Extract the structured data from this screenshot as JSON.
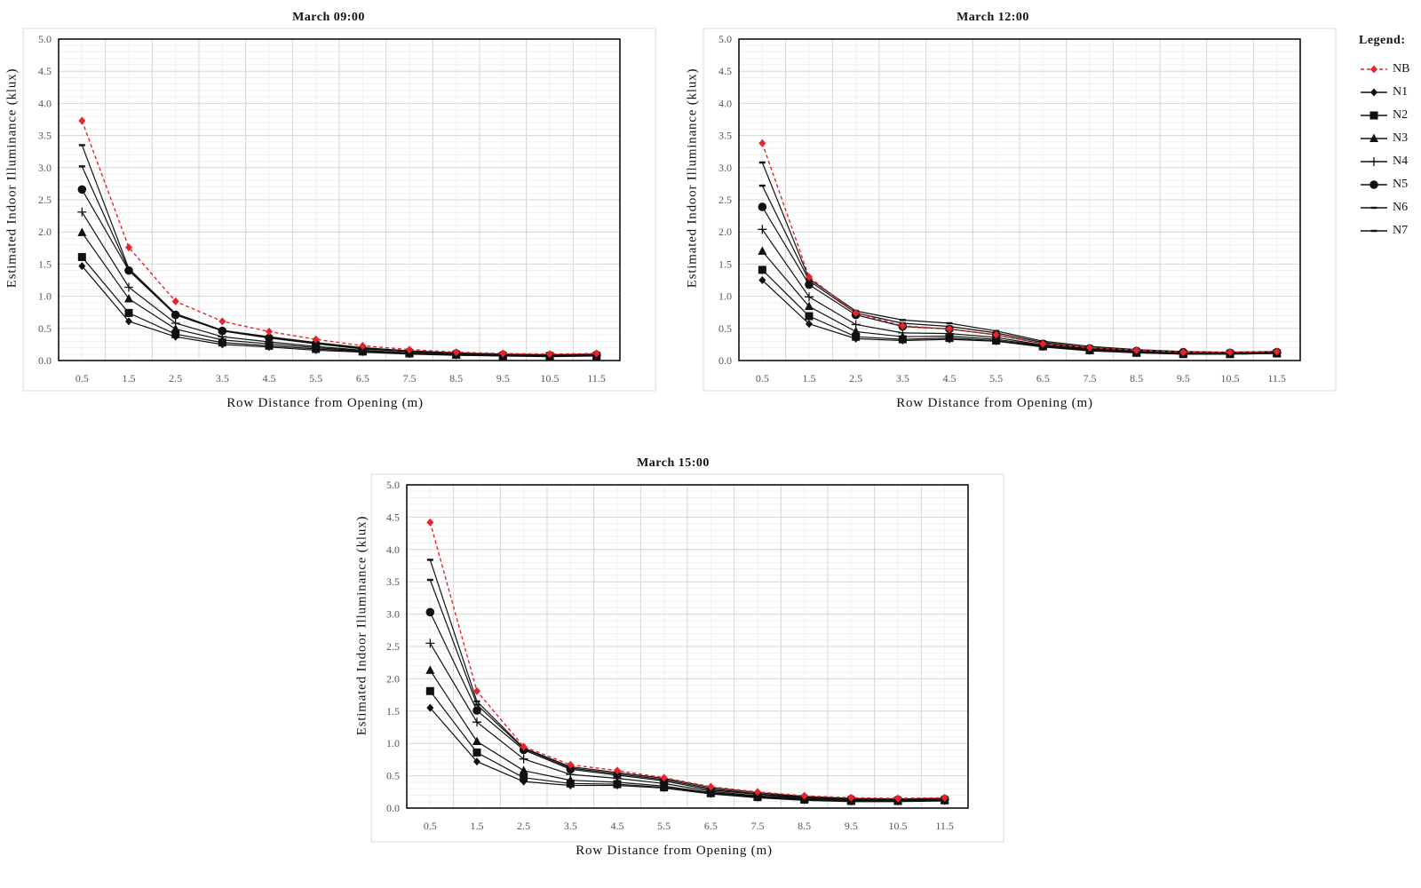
{
  "legend": {
    "title": "Legend:"
  },
  "styles": {
    "NB": {
      "color": "#e8242a",
      "marker": "diamond",
      "dashed": true
    },
    "N1": {
      "color": "#111111",
      "marker": "diamond",
      "dashed": false
    },
    "N2": {
      "color": "#111111",
      "marker": "square",
      "dashed": false
    },
    "N3": {
      "color": "#111111",
      "marker": "triangle",
      "dashed": false
    },
    "N4": {
      "color": "#111111",
      "marker": "plus",
      "dashed": false
    },
    "N5": {
      "color": "#111111",
      "marker": "circle",
      "dashed": false
    },
    "N6": {
      "color": "#111111",
      "marker": "dash",
      "dashed": false
    },
    "N7": {
      "color": "#111111",
      "marker": "dash",
      "dashed": false
    }
  },
  "chart_data": [
    {
      "type": "line",
      "title": "March 09:00",
      "xlabel": "Row Distance from Opening (m)",
      "ylabel": "Estimated Indoor Illuminance (klux)",
      "categories": [
        "0.5",
        "1.5",
        "2.5",
        "3.5",
        "4.5",
        "5.5",
        "6.5",
        "7.5",
        "8.5",
        "9.5",
        "10.5",
        "11.5"
      ],
      "ylim": [
        0,
        5.0
      ],
      "yticks": [
        "0.0",
        "0.5",
        "1.0",
        "1.5",
        "2.0",
        "2.5",
        "3.0",
        "3.5",
        "4.0",
        "4.5",
        "5.0"
      ],
      "grid": true,
      "series": [
        {
          "name": "NB",
          "values": [
            3.73,
            1.76,
            0.92,
            0.61,
            0.45,
            0.33,
            0.23,
            0.17,
            0.13,
            0.11,
            0.1,
            0.11
          ]
        },
        {
          "name": "N1",
          "values": [
            1.47,
            0.61,
            0.37,
            0.25,
            0.21,
            0.16,
            0.13,
            0.1,
            0.08,
            0.07,
            0.06,
            0.07
          ]
        },
        {
          "name": "N2",
          "values": [
            1.61,
            0.74,
            0.41,
            0.28,
            0.23,
            0.18,
            0.14,
            0.11,
            0.09,
            0.07,
            0.07,
            0.07
          ]
        },
        {
          "name": "N3",
          "values": [
            1.99,
            0.96,
            0.49,
            0.32,
            0.26,
            0.2,
            0.15,
            0.12,
            0.09,
            0.08,
            0.07,
            0.08
          ]
        },
        {
          "name": "N4",
          "values": [
            2.31,
            1.14,
            0.58,
            0.37,
            0.29,
            0.22,
            0.16,
            0.12,
            0.1,
            0.08,
            0.07,
            0.08
          ]
        },
        {
          "name": "N5",
          "values": [
            2.66,
            1.4,
            0.71,
            0.46,
            0.35,
            0.26,
            0.18,
            0.14,
            0.11,
            0.09,
            0.08,
            0.09
          ]
        },
        {
          "name": "N6",
          "values": [
            3.02,
            1.41,
            0.72,
            0.46,
            0.36,
            0.27,
            0.19,
            0.14,
            0.11,
            0.09,
            0.08,
            0.09
          ]
        },
        {
          "name": "N7",
          "values": [
            3.35,
            1.43,
            0.73,
            0.47,
            0.37,
            0.28,
            0.2,
            0.15,
            0.12,
            0.1,
            0.09,
            0.1
          ]
        }
      ]
    },
    {
      "type": "line",
      "title": "March 12:00",
      "xlabel": "Row Distance from Opening (m)",
      "ylabel": "Estimated Indoor Illuminance (klux)",
      "categories": [
        "0.5",
        "1.5",
        "2.5",
        "3.5",
        "4.5",
        "5.5",
        "6.5",
        "7.5",
        "8.5",
        "9.5",
        "10.5",
        "11.5"
      ],
      "ylim": [
        0,
        5.0
      ],
      "yticks": [
        "0.0",
        "0.5",
        "1.0",
        "1.5",
        "2.0",
        "2.5",
        "3.0",
        "3.5",
        "4.0",
        "4.5",
        "5.0"
      ],
      "grid": true,
      "series": [
        {
          "name": "NB",
          "values": [
            3.38,
            1.3,
            0.74,
            0.54,
            0.49,
            0.4,
            0.26,
            0.2,
            0.16,
            0.13,
            0.13,
            0.14
          ]
        },
        {
          "name": "N1",
          "values": [
            1.25,
            0.57,
            0.34,
            0.31,
            0.33,
            0.3,
            0.21,
            0.15,
            0.12,
            0.1,
            0.1,
            0.11
          ]
        },
        {
          "name": "N2",
          "values": [
            1.41,
            0.69,
            0.37,
            0.33,
            0.35,
            0.31,
            0.22,
            0.16,
            0.12,
            0.1,
            0.1,
            0.11
          ]
        },
        {
          "name": "N3",
          "values": [
            1.7,
            0.84,
            0.45,
            0.37,
            0.38,
            0.33,
            0.23,
            0.17,
            0.13,
            0.11,
            0.11,
            0.12
          ]
        },
        {
          "name": "N4",
          "values": [
            2.04,
            0.99,
            0.56,
            0.43,
            0.42,
            0.36,
            0.24,
            0.18,
            0.14,
            0.12,
            0.11,
            0.12
          ]
        },
        {
          "name": "N5",
          "values": [
            2.39,
            1.18,
            0.71,
            0.53,
            0.49,
            0.4,
            0.26,
            0.19,
            0.15,
            0.13,
            0.12,
            0.13
          ]
        },
        {
          "name": "N6",
          "values": [
            2.72,
            1.24,
            0.74,
            0.58,
            0.53,
            0.43,
            0.28,
            0.2,
            0.16,
            0.13,
            0.13,
            0.14
          ]
        },
        {
          "name": "N7",
          "values": [
            3.08,
            1.27,
            0.77,
            0.63,
            0.58,
            0.46,
            0.3,
            0.22,
            0.17,
            0.14,
            0.13,
            0.14
          ]
        }
      ]
    },
    {
      "type": "line",
      "title": "March 15:00",
      "xlabel": "Row Distance from Opening (m)",
      "ylabel": "Estimated Indoor Illuminance (klux)",
      "categories": [
        "0.5",
        "1.5",
        "2.5",
        "3.5",
        "4.5",
        "5.5",
        "6.5",
        "7.5",
        "8.5",
        "9.5",
        "10.5",
        "11.5"
      ],
      "ylim": [
        0,
        5.0
      ],
      "yticks": [
        "0.0",
        "0.5",
        "1.0",
        "1.5",
        "2.0",
        "2.5",
        "3.0",
        "3.5",
        "4.0",
        "4.5",
        "5.0"
      ],
      "grid": true,
      "series": [
        {
          "name": "NB",
          "values": [
            4.42,
            1.81,
            0.95,
            0.67,
            0.58,
            0.47,
            0.33,
            0.25,
            0.19,
            0.16,
            0.15,
            0.16
          ]
        },
        {
          "name": "N1",
          "values": [
            1.55,
            0.72,
            0.41,
            0.35,
            0.35,
            0.31,
            0.22,
            0.16,
            0.12,
            0.1,
            0.1,
            0.11
          ]
        },
        {
          "name": "N2",
          "values": [
            1.81,
            0.86,
            0.47,
            0.38,
            0.37,
            0.32,
            0.23,
            0.17,
            0.13,
            0.11,
            0.11,
            0.12
          ]
        },
        {
          "name": "N3",
          "values": [
            2.13,
            1.03,
            0.58,
            0.43,
            0.4,
            0.34,
            0.24,
            0.18,
            0.14,
            0.12,
            0.11,
            0.12
          ]
        },
        {
          "name": "N4",
          "values": [
            2.55,
            1.33,
            0.76,
            0.52,
            0.46,
            0.38,
            0.26,
            0.19,
            0.15,
            0.13,
            0.12,
            0.13
          ]
        },
        {
          "name": "N5",
          "values": [
            3.03,
            1.51,
            0.9,
            0.6,
            0.51,
            0.42,
            0.28,
            0.21,
            0.16,
            0.14,
            0.13,
            0.14
          ]
        },
        {
          "name": "N6",
          "values": [
            3.53,
            1.6,
            0.92,
            0.62,
            0.53,
            0.44,
            0.3,
            0.22,
            0.17,
            0.14,
            0.14,
            0.15
          ]
        },
        {
          "name": "N7",
          "values": [
            3.84,
            1.65,
            0.93,
            0.64,
            0.55,
            0.46,
            0.32,
            0.24,
            0.18,
            0.15,
            0.14,
            0.15
          ]
        }
      ]
    }
  ]
}
